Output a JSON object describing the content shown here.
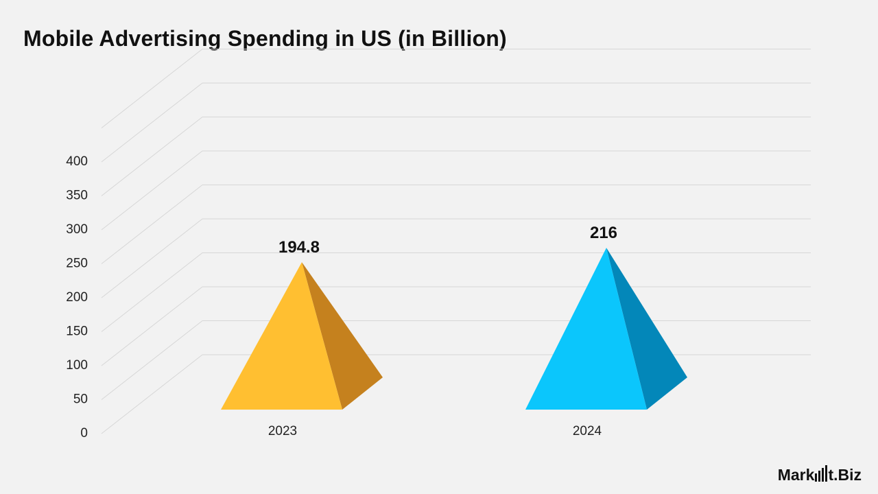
{
  "title": "Mobile Advertising Spending in US (in Billion)",
  "chart_data": {
    "type": "bar",
    "subtype": "3d-pyramid",
    "title": "Mobile Advertising Spending in US (in Billion)",
    "categories": [
      "2023",
      "2024"
    ],
    "values": [
      194.8,
      216
    ],
    "value_labels": [
      "194.8",
      "216"
    ],
    "ylim": [
      0,
      400
    ],
    "yticks": [
      0,
      50,
      100,
      150,
      200,
      250,
      300,
      350,
      400
    ],
    "grid": true,
    "colors": [
      {
        "front": "#FFBF31",
        "side": "#C5811E"
      },
      {
        "front": "#0BC6FC",
        "side": "#0387B9"
      }
    ]
  },
  "logo": {
    "text_before": "Mark",
    "text_after": "t.Biz"
  },
  "theme": {
    "background": "#f2f2f2",
    "grid": "#d6d6d6",
    "text": "#111111"
  }
}
